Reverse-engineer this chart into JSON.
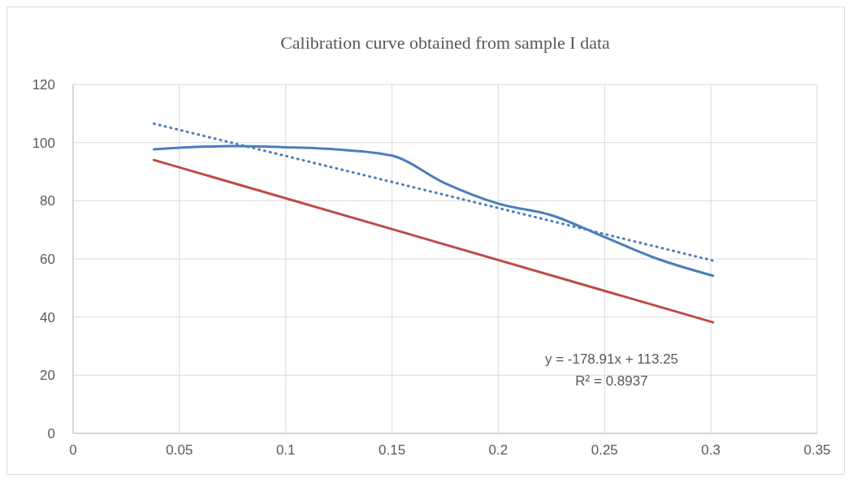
{
  "chart_data": {
    "type": "line",
    "title": "Calibration curve  obtained from sample I data",
    "xlim": [
      0,
      0.35
    ],
    "xticks": [
      0,
      0.05,
      0.1,
      0.15,
      0.2,
      0.25,
      0.3,
      0.35
    ],
    "ylim": [
      0,
      120
    ],
    "yticks": [
      0,
      20,
      40,
      60,
      80,
      100,
      120
    ],
    "grid": true,
    "series": [
      {
        "color": "#4a7ebb",
        "x": [
          0.038,
          0.075,
          0.1,
          0.125,
          0.15,
          0.175,
          0.2,
          0.225,
          0.25,
          0.275,
          0.301
        ],
        "values": [
          97.7,
          98.8,
          98.4,
          97.6,
          95.5,
          86,
          79,
          75,
          67.5,
          60,
          54.2
        ],
        "line_style": "solid"
      },
      {
        "color": "#4a7ebb",
        "x": [
          0.038,
          0.301
        ],
        "values": [
          106.5,
          59.4
        ],
        "line_style": "dotted"
      },
      {
        "color": "#be4b48",
        "x": [
          0.038,
          0.301
        ],
        "values": [
          94,
          38.2
        ],
        "line_style": "solid"
      }
    ],
    "annotations": [
      "y = -178.91x + 113.25",
      "R² = 0.8937"
    ]
  }
}
